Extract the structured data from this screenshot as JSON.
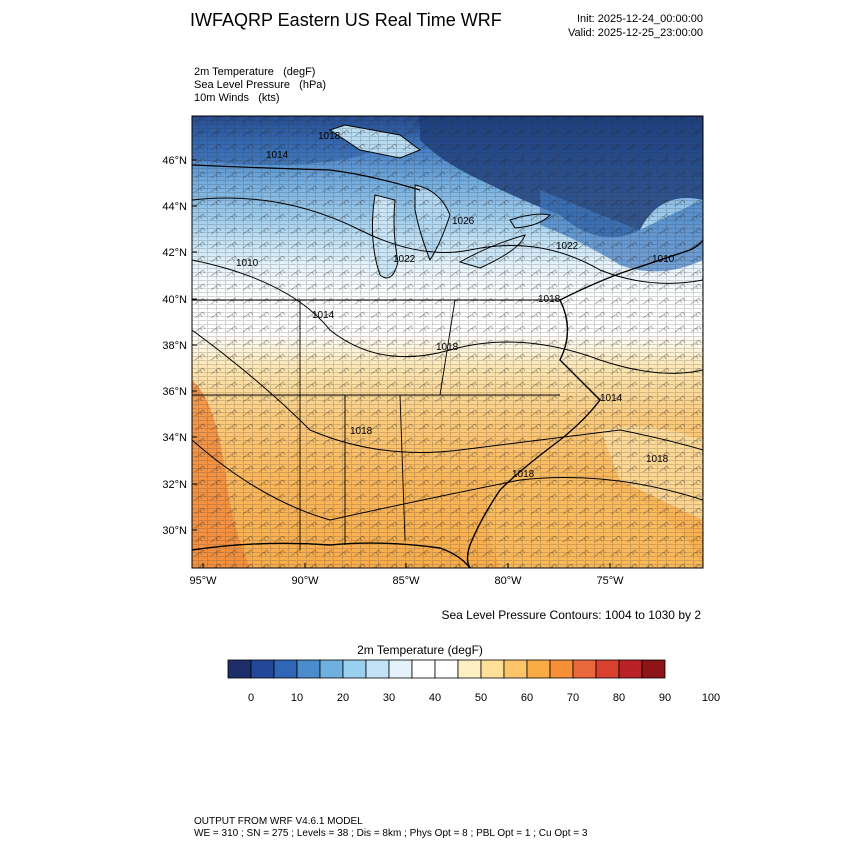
{
  "header": {
    "title": "IWFAQRP Eastern US Real Time WRF",
    "init": "Init: 2025-12-24_00:00:00",
    "valid": "Valid: 2025-12-25_23:00:00"
  },
  "variables": [
    {
      "name": "2m Temperature",
      "unit": "(degF)"
    },
    {
      "name": "Sea Level Pressure",
      "unit": "(hPa)"
    },
    {
      "name": "10m Winds",
      "unit": "(kts)"
    }
  ],
  "map": {
    "lat_labels": [
      "46°N",
      "44°N",
      "42°N",
      "40°N",
      "38°N",
      "36°N",
      "34°N",
      "32°N",
      "30°N"
    ],
    "lon_labels": [
      "95°W",
      "90°W",
      "85°W",
      "80°W",
      "75°W"
    ],
    "isobar_labels": [
      "1018",
      "1014",
      "1026",
      "1022",
      "1022",
      "1010",
      "1010",
      "1018",
      "1014",
      "1018",
      "1018",
      "1014",
      "1018",
      "1018"
    ]
  },
  "contours_note": "Sea Level Pressure Contours: 1004 to 1030 by 2",
  "colorbar": {
    "title": "2m Temperature  (degF)",
    "labels": [
      "0",
      "10",
      "20",
      "30",
      "40",
      "50",
      "60",
      "70",
      "80",
      "90",
      "100"
    ],
    "colors": [
      "#1d2e6b",
      "#24479a",
      "#2f66b5",
      "#4a8ccc",
      "#6fb0df",
      "#9ad0ef",
      "#c2e3f6",
      "#e3f2fb",
      "#ffffff",
      "#ffffff",
      "#fff0c4",
      "#ffe099",
      "#fdc46a",
      "#fbab45",
      "#f68f38",
      "#e9673a",
      "#d8402f",
      "#bb2227",
      "#8f1417"
    ]
  },
  "footer": {
    "line1": "OUTPUT FROM WRF V4.6.1 MODEL",
    "line2": "WE = 310 ; SN = 275 ; Levels = 38 ; Dis = 8km ; Phys Opt = 8 ; PBL Opt = 1 ; Cu Opt = 3"
  }
}
